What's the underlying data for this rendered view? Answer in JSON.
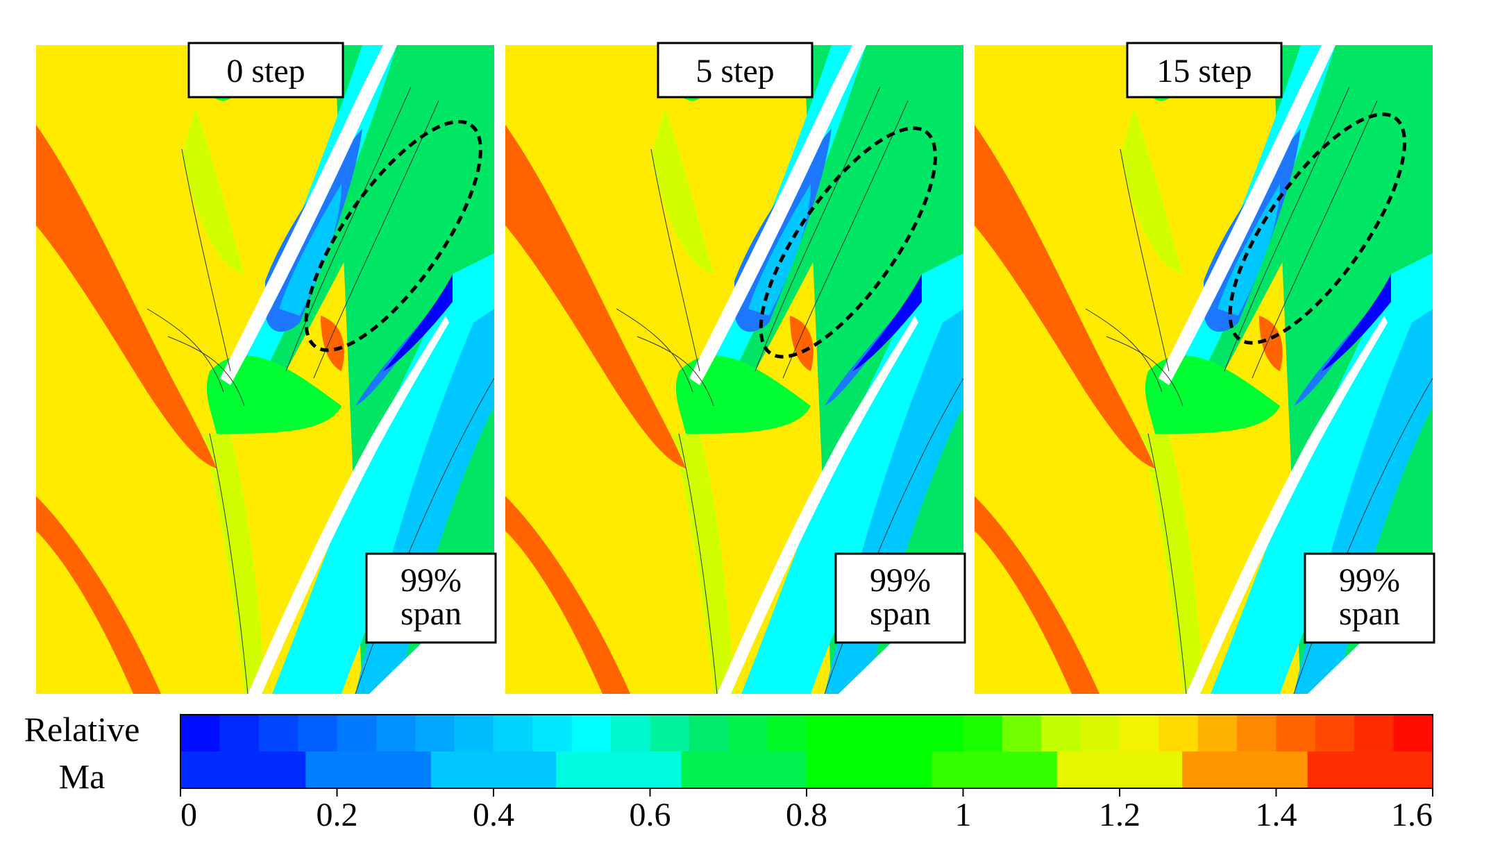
{
  "figure": {
    "panels": [
      {
        "step_label": "0 step",
        "span_line1": "99%",
        "span_line2": "span"
      },
      {
        "step_label": "5 step",
        "span_line1": "99%",
        "span_line2": "span"
      },
      {
        "step_label": "15 step",
        "span_line1": "99%",
        "span_line2": "span"
      }
    ],
    "colorbar": {
      "title_line1": "Relative",
      "title_line2": "Ma",
      "ticks": [
        "0",
        "0.2",
        "0.4",
        "0.6",
        "0.8",
        "1",
        "1.2",
        "1.4",
        "1.6"
      ],
      "range": [
        0,
        1.6
      ],
      "coarse_levels": 10,
      "fine_levels": 32
    },
    "colors": {
      "yellow": "#ffeb00",
      "orange": "#ff6400",
      "yellow_green": "#d2ff00",
      "green": "#00ff32",
      "light_green": "#00e664",
      "cyan": "#00ffff",
      "light_blue": "#00c8ff",
      "blue": "#1e78ff",
      "deep_blue": "#0000ff",
      "red": "#ff0000"
    }
  }
}
